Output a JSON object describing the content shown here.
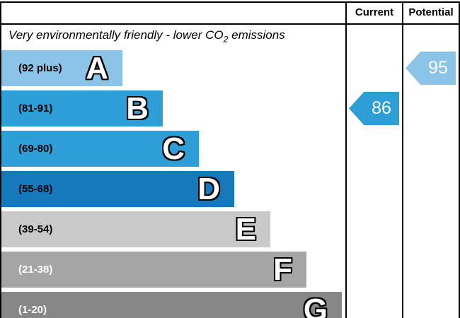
{
  "header": {
    "current": "Current",
    "potential": "Potential"
  },
  "title": {
    "prefix": "Very environmentally friendly - lower CO",
    "subscript": "2",
    "suffix": " emissions"
  },
  "bands": [
    {
      "letter": "A",
      "range": "(92 plus)",
      "color": "#8cc4e7",
      "text_color": "#000000",
      "bar_length": 171
    },
    {
      "letter": "B",
      "range": "(81-91)",
      "color": "#2e9ed7",
      "text_color": "#000000",
      "bar_length": 228
    },
    {
      "letter": "C",
      "range": "(69-80)",
      "color": "#2e9ed7",
      "text_color": "#000000",
      "bar_length": 279
    },
    {
      "letter": "D",
      "range": "(55-68)",
      "color": "#1679bc",
      "text_color": "#000000",
      "bar_length": 329
    },
    {
      "letter": "E",
      "range": "(39-54)",
      "color": "#c9c9c9",
      "text_color": "#000000",
      "bar_length": 380
    },
    {
      "letter": "F",
      "range": "(21-38)",
      "color": "#a5a5a5",
      "text_color": "#ffffff",
      "bar_length": 431
    },
    {
      "letter": "G",
      "range": "(1-20)",
      "color": "#878787",
      "text_color": "#ffffff",
      "bar_length": 481
    }
  ],
  "indicators": {
    "current": {
      "value": "86",
      "band": "B",
      "band_index": 1,
      "color": "#2e9ed7"
    },
    "potential": {
      "value": "95",
      "band": "A",
      "band_index": 0,
      "color": "#8cc4e7"
    }
  },
  "chart_data": {
    "type": "bar",
    "title": "Very environmentally friendly - lower CO2 emissions",
    "columns": [
      "Current",
      "Potential"
    ],
    "bands": [
      {
        "letter": "A",
        "range": "92 plus"
      },
      {
        "letter": "B",
        "range": "81-91"
      },
      {
        "letter": "C",
        "range": "69-80"
      },
      {
        "letter": "D",
        "range": "55-68"
      },
      {
        "letter": "E",
        "range": "39-54"
      },
      {
        "letter": "F",
        "range": "21-38"
      },
      {
        "letter": "G",
        "range": "1-20"
      }
    ],
    "current": 86,
    "current_band": "B",
    "potential": 95,
    "potential_band": "A",
    "legend_position": "none",
    "grid": false
  }
}
